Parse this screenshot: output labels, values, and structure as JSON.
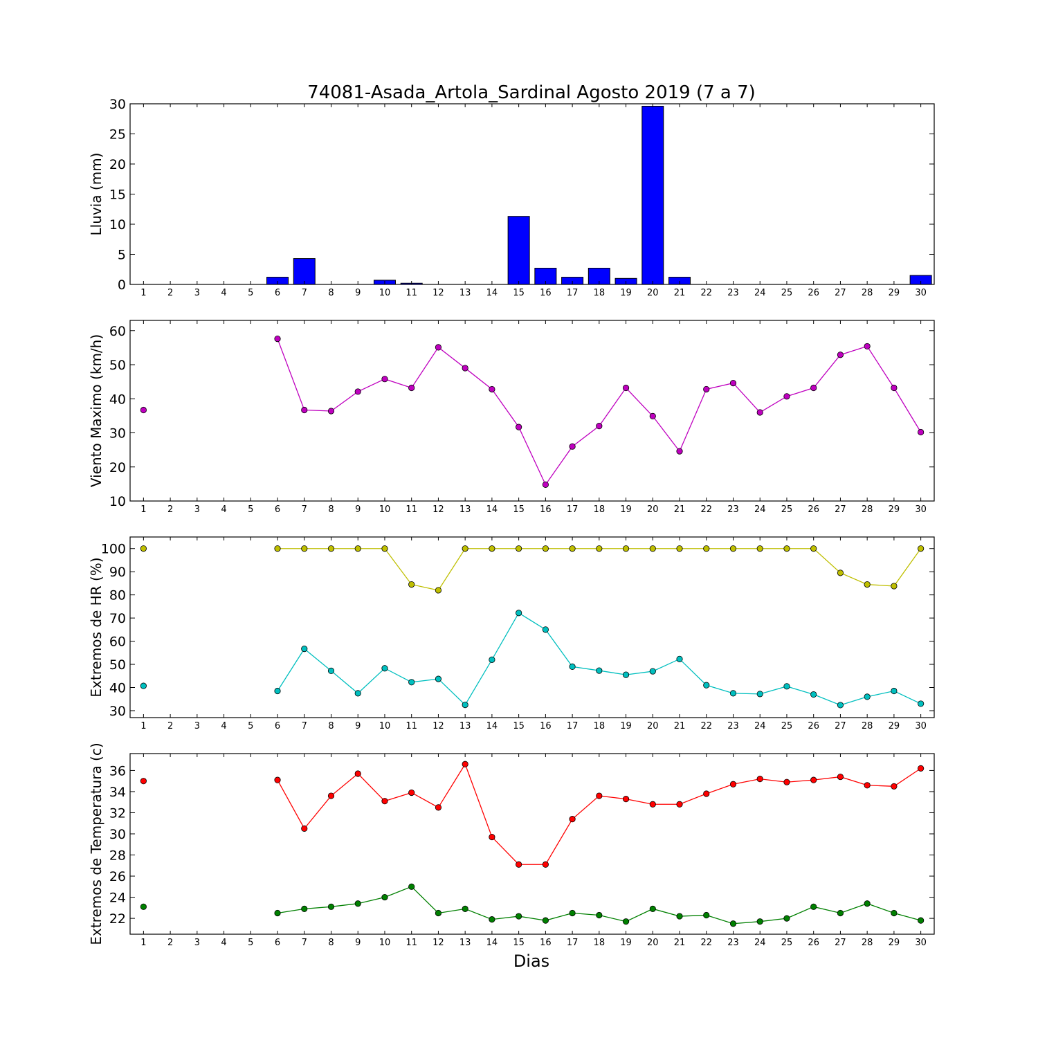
{
  "figure_title": "74081-Asada_Artola_Sardinal Agosto 2019  (7 a 7)",
  "xlabel": "Dias",
  "days": [
    1,
    2,
    3,
    4,
    5,
    6,
    7,
    8,
    9,
    10,
    11,
    12,
    13,
    14,
    15,
    16,
    17,
    18,
    19,
    20,
    21,
    22,
    23,
    24,
    25,
    26,
    27,
    28,
    29,
    30
  ],
  "colors": {
    "rain": "#0000ff",
    "wind": "#bf00bf",
    "hr_max": "#bfbf00",
    "hr_min": "#00bfbf",
    "t_max": "#ff0000",
    "t_min": "#008000"
  },
  "chart_data": [
    {
      "type": "bar",
      "ylabel": "Lluvia (mm)",
      "ylim": [
        0,
        30
      ],
      "yticks": [
        0,
        5,
        10,
        15,
        20,
        25,
        30
      ],
      "x": [
        1,
        2,
        3,
        4,
        5,
        6,
        7,
        8,
        9,
        10,
        11,
        12,
        13,
        14,
        15,
        16,
        17,
        18,
        19,
        20,
        21,
        22,
        23,
        24,
        25,
        26,
        27,
        28,
        29,
        30
      ],
      "series": [
        {
          "color": "#0000ff",
          "values": [
            0,
            0,
            0,
            0,
            0,
            1.2,
            4.3,
            0,
            0,
            0.7,
            0.2,
            0,
            0,
            0,
            11.3,
            2.7,
            1.2,
            2.7,
            1.0,
            29.6,
            1.2,
            0,
            0,
            0,
            0,
            0,
            0,
            0,
            0,
            1.5
          ]
        }
      ]
    },
    {
      "type": "line",
      "ylabel": "Viento Maximo (km/h)",
      "ylim": [
        10,
        63
      ],
      "yticks": [
        10,
        20,
        30,
        40,
        50,
        60
      ],
      "x": [
        1,
        2,
        3,
        4,
        5,
        6,
        7,
        8,
        9,
        10,
        11,
        12,
        13,
        14,
        15,
        16,
        17,
        18,
        19,
        20,
        21,
        22,
        23,
        24,
        25,
        26,
        27,
        28,
        29,
        30
      ],
      "series": [
        {
          "color": "#bf00bf",
          "values": [
            36.7,
            null,
            null,
            null,
            null,
            57.6,
            36.7,
            36.4,
            42.1,
            45.8,
            43.2,
            55.1,
            49.0,
            42.8,
            31.7,
            14.8,
            26.0,
            32.0,
            43.2,
            34.9,
            24.6,
            42.8,
            44.6,
            36.0,
            40.7,
            43.2,
            52.9,
            55.4,
            43.2,
            30.2
          ]
        }
      ]
    },
    {
      "type": "line",
      "ylabel": "Extremos de HR (%)",
      "ylim": [
        27,
        105
      ],
      "yticks": [
        30,
        40,
        50,
        60,
        70,
        80,
        90,
        100
      ],
      "x": [
        1,
        2,
        3,
        4,
        5,
        6,
        7,
        8,
        9,
        10,
        11,
        12,
        13,
        14,
        15,
        16,
        17,
        18,
        19,
        20,
        21,
        22,
        23,
        24,
        25,
        26,
        27,
        28,
        29,
        30
      ],
      "series": [
        {
          "color": "#bfbf00",
          "values": [
            100,
            null,
            null,
            null,
            null,
            100,
            100,
            100,
            100,
            100,
            84.5,
            82.0,
            100,
            100,
            100,
            100,
            100,
            100,
            100,
            100,
            100,
            100,
            100,
            100,
            100,
            100,
            89.5,
            84.5,
            83.8,
            100
          ]
        },
        {
          "color": "#00bfbf",
          "values": [
            40.7,
            null,
            null,
            null,
            null,
            38.5,
            56.7,
            47.2,
            37.5,
            48.3,
            42.3,
            43.7,
            32.5,
            52.0,
            72.2,
            65.0,
            49.0,
            47.3,
            45.5,
            47.0,
            52.3,
            41.0,
            37.5,
            37.2,
            40.5,
            37.0,
            32.4,
            36.0,
            38.5,
            33.0
          ]
        }
      ]
    },
    {
      "type": "line",
      "ylabel": "Extremos de Temperatura (c)",
      "ylim": [
        20.5,
        37.6
      ],
      "yticks": [
        22,
        24,
        26,
        28,
        30,
        32,
        34,
        36
      ],
      "x": [
        1,
        2,
        3,
        4,
        5,
        6,
        7,
        8,
        9,
        10,
        11,
        12,
        13,
        14,
        15,
        16,
        17,
        18,
        19,
        20,
        21,
        22,
        23,
        24,
        25,
        26,
        27,
        28,
        29,
        30
      ],
      "series": [
        {
          "color": "#ff0000",
          "values": [
            35.0,
            null,
            null,
            null,
            null,
            35.1,
            30.5,
            33.6,
            35.7,
            33.1,
            33.9,
            32.5,
            36.6,
            29.7,
            27.1,
            27.1,
            31.4,
            33.6,
            33.3,
            32.8,
            32.8,
            33.8,
            34.7,
            35.2,
            34.9,
            35.1,
            35.4,
            34.6,
            34.5,
            36.2
          ]
        },
        {
          "color": "#008000",
          "values": [
            23.1,
            null,
            null,
            null,
            null,
            22.5,
            22.9,
            23.1,
            23.4,
            24.0,
            25.0,
            22.5,
            22.9,
            21.9,
            22.2,
            21.8,
            22.5,
            22.3,
            21.7,
            22.9,
            22.2,
            22.3,
            21.5,
            21.7,
            22.0,
            23.1,
            22.5,
            23.4,
            22.5,
            21.8
          ]
        }
      ]
    }
  ]
}
